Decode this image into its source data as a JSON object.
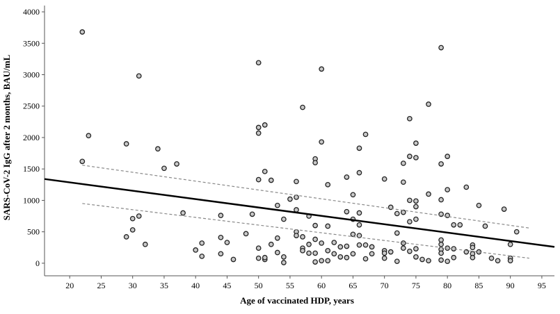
{
  "chart_data": {
    "type": "scatter",
    "title": "",
    "xlabel": "Age of vaccinated HDP, years",
    "ylabel": "SARS-CoV-2 IgG after 2 months, BAU/mL",
    "xlim": [
      16,
      97
    ],
    "ylim": [
      -200,
      4100
    ],
    "x_ticks": [
      20,
      25,
      30,
      35,
      40,
      45,
      50,
      55,
      60,
      65,
      70,
      75,
      80,
      85,
      90,
      95
    ],
    "y_ticks": [
      0,
      500,
      1000,
      1500,
      2000,
      2500,
      3000,
      3500,
      4000
    ],
    "grid": false,
    "marker_fill": "#c8c8c8",
    "marker_edge": "#222222",
    "points": [
      [
        22,
        3680
      ],
      [
        22,
        1620
      ],
      [
        23,
        2030
      ],
      [
        29,
        1900
      ],
      [
        29,
        420
      ],
      [
        30,
        710
      ],
      [
        30,
        530
      ],
      [
        31,
        2980
      ],
      [
        31,
        750
      ],
      [
        32,
        300
      ],
      [
        34,
        1820
      ],
      [
        35,
        1510
      ],
      [
        37,
        1580
      ],
      [
        38,
        800
      ],
      [
        40,
        210
      ],
      [
        41,
        320
      ],
      [
        41,
        110
      ],
      [
        44,
        760
      ],
      [
        44,
        410
      ],
      [
        44,
        150
      ],
      [
        45,
        330
      ],
      [
        46,
        60
      ],
      [
        48,
        470
      ],
      [
        49,
        780
      ],
      [
        50,
        3190
      ],
      [
        50,
        2160
      ],
      [
        50,
        2070
      ],
      [
        50,
        1330
      ],
      [
        50,
        240
      ],
      [
        50,
        80
      ],
      [
        51,
        2200
      ],
      [
        51,
        1460
      ],
      [
        51,
        60
      ],
      [
        51,
        90
      ],
      [
        52,
        1320
      ],
      [
        52,
        300
      ],
      [
        53,
        920
      ],
      [
        53,
        400
      ],
      [
        53,
        170
      ],
      [
        54,
        700
      ],
      [
        54,
        100
      ],
      [
        54,
        10
      ],
      [
        55,
        1020
      ],
      [
        56,
        1300
      ],
      [
        56,
        1050
      ],
      [
        56,
        850
      ],
      [
        56,
        500
      ],
      [
        56,
        440
      ],
      [
        57,
        2480
      ],
      [
        57,
        420
      ],
      [
        57,
        240
      ],
      [
        57,
        200
      ],
      [
        58,
        750
      ],
      [
        58,
        300
      ],
      [
        58,
        160
      ],
      [
        59,
        1660
      ],
      [
        59,
        1600
      ],
      [
        59,
        600
      ],
      [
        59,
        380
      ],
      [
        59,
        160
      ],
      [
        59,
        20
      ],
      [
        60,
        3090
      ],
      [
        60,
        1930
      ],
      [
        60,
        320
      ],
      [
        60,
        40
      ],
      [
        61,
        1250
      ],
      [
        61,
        590
      ],
      [
        61,
        200
      ],
      [
        61,
        40
      ],
      [
        62,
        330
      ],
      [
        62,
        150
      ],
      [
        63,
        260
      ],
      [
        63,
        100
      ],
      [
        64,
        1370
      ],
      [
        64,
        820
      ],
      [
        64,
        270
      ],
      [
        64,
        90
      ],
      [
        65,
        1090
      ],
      [
        65,
        700
      ],
      [
        65,
        460
      ],
      [
        65,
        150
      ],
      [
        66,
        1830
      ],
      [
        66,
        1440
      ],
      [
        66,
        800
      ],
      [
        66,
        610
      ],
      [
        66,
        440
      ],
      [
        66,
        290
      ],
      [
        67,
        2050
      ],
      [
        67,
        290
      ],
      [
        67,
        70
      ],
      [
        68,
        260
      ],
      [
        68,
        150
      ],
      [
        70,
        1340
      ],
      [
        70,
        200
      ],
      [
        70,
        160
      ],
      [
        70,
        80
      ],
      [
        71,
        890
      ],
      [
        71,
        180
      ],
      [
        72,
        790
      ],
      [
        72,
        480
      ],
      [
        72,
        30
      ],
      [
        73,
        1590
      ],
      [
        73,
        1290
      ],
      [
        73,
        810
      ],
      [
        73,
        320
      ],
      [
        73,
        240
      ],
      [
        74,
        2300
      ],
      [
        74,
        1700
      ],
      [
        74,
        1000
      ],
      [
        74,
        660
      ],
      [
        74,
        190
      ],
      [
        75,
        1910
      ],
      [
        75,
        1680
      ],
      [
        75,
        990
      ],
      [
        75,
        900
      ],
      [
        75,
        700
      ],
      [
        75,
        230
      ],
      [
        75,
        100
      ],
      [
        76,
        60
      ],
      [
        77,
        2530
      ],
      [
        77,
        1100
      ],
      [
        77,
        40
      ],
      [
        79,
        3430
      ],
      [
        79,
        1580
      ],
      [
        79,
        1010
      ],
      [
        79,
        780
      ],
      [
        79,
        370
      ],
      [
        79,
        300
      ],
      [
        79,
        220
      ],
      [
        79,
        160
      ],
      [
        79,
        50
      ],
      [
        80,
        1700
      ],
      [
        80,
        1170
      ],
      [
        80,
        760
      ],
      [
        80,
        240
      ],
      [
        80,
        30
      ],
      [
        81,
        610
      ],
      [
        81,
        230
      ],
      [
        81,
        90
      ],
      [
        82,
        610
      ],
      [
        83,
        1210
      ],
      [
        83,
        180
      ],
      [
        84,
        290
      ],
      [
        84,
        250
      ],
      [
        84,
        150
      ],
      [
        84,
        90
      ],
      [
        85,
        920
      ],
      [
        85,
        180
      ],
      [
        86,
        590
      ],
      [
        87,
        80
      ],
      [
        88,
        40
      ],
      [
        89,
        860
      ],
      [
        90,
        300
      ],
      [
        90,
        80
      ],
      [
        90,
        40
      ],
      [
        91,
        500
      ]
    ],
    "fit_line": {
      "x": [
        16,
        97
      ],
      "y": [
        1340,
        260
      ]
    },
    "ci_upper": {
      "x": [
        22,
        93
      ],
      "y": [
        1560,
        560
      ]
    },
    "ci_lower": {
      "x": [
        22,
        93
      ],
      "y": [
        950,
        80
      ]
    }
  }
}
